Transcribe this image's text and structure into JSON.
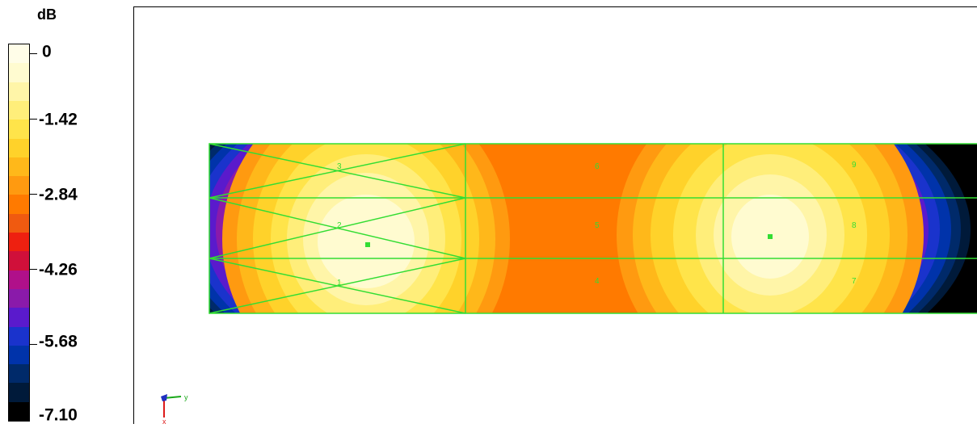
{
  "legend": {
    "unit": "dB",
    "labels": [
      "0",
      "-1.42",
      "-2.84",
      "-4.26",
      "-5.68",
      "-7.10"
    ],
    "colors": [
      "#000000",
      "#001a3a",
      "#002a6a",
      "#0033aa",
      "#1a33cc",
      "#5a1acc",
      "#8a1aaa",
      "#b0108a",
      "#d0103a",
      "#ee2010",
      "#f05a10",
      "#ff7a00",
      "#ff9a10",
      "#ffb81a",
      "#ffd22a",
      "#ffe44a",
      "#ffee7a",
      "#fff5a8",
      "#fffbd0",
      "#fffde8"
    ]
  },
  "panels": {
    "numbers": [
      "1",
      "2",
      "3",
      "4",
      "5",
      "6",
      "7",
      "8",
      "9"
    ]
  },
  "triad": {
    "y_label": "y",
    "x_label": "x"
  },
  "colors": {
    "mesh_line": "#33dd33"
  }
}
